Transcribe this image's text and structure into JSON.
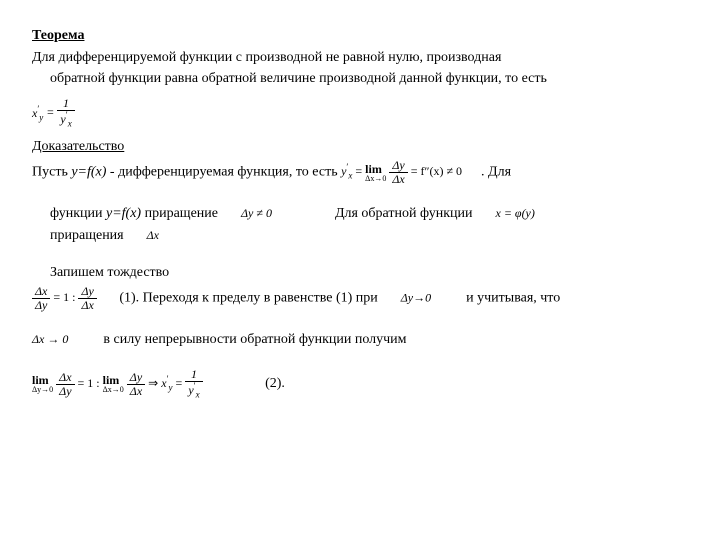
{
  "title": "Теорема",
  "theorem_line1": "Для дифференцируемой функции с производной не равной нулю, производная",
  "theorem_line2": "обратной функции равна обратной величине производной данной функции, то есть",
  "proof_title": "Доказательство",
  "proof_line1_a": "Пусть ",
  "proof_line1_b": "y=f(x)",
  "proof_line1_c": " - дифференцируемая функция, то есть ",
  "proof_line1_d": ". Для",
  "proof_line2_a": "функции ",
  "proof_line2_b": "y=f(x)",
  "proof_line2_c": " приращение",
  "proof_line2_d": "Для обратной функции",
  "proof_line3": "приращения",
  "proof_line4": "Запишем тождество",
  "proof_line5_a": "(1). Переходя к пределу в равенстве (1) при",
  "proof_line5_b": "и учитывая, что",
  "proof_line6": "в силу непрерывности обратной функции получим",
  "proof_line7": "(2).",
  "math": {
    "xy_prime": "x",
    "sub_y": "y",
    "one": "1",
    "yx_prime": "y",
    "sub_x": "x",
    "eq": " = ",
    "lim": "lim",
    "dy": "Δy",
    "dx": "Δx",
    "dx_to_0": "Δx→0",
    "dy_to_0": "Δy→0",
    "fprimex": "= f″(x) ≠ 0",
    "dy_ne_0": "Δy ≠ 0",
    "x_phi_y": "x = φ(y)",
    "dx_only": "Δx",
    "one_colon": "= 1 : ",
    "arrow": "⇒",
    "dx_to_0_arrow": "Δx → 0"
  }
}
